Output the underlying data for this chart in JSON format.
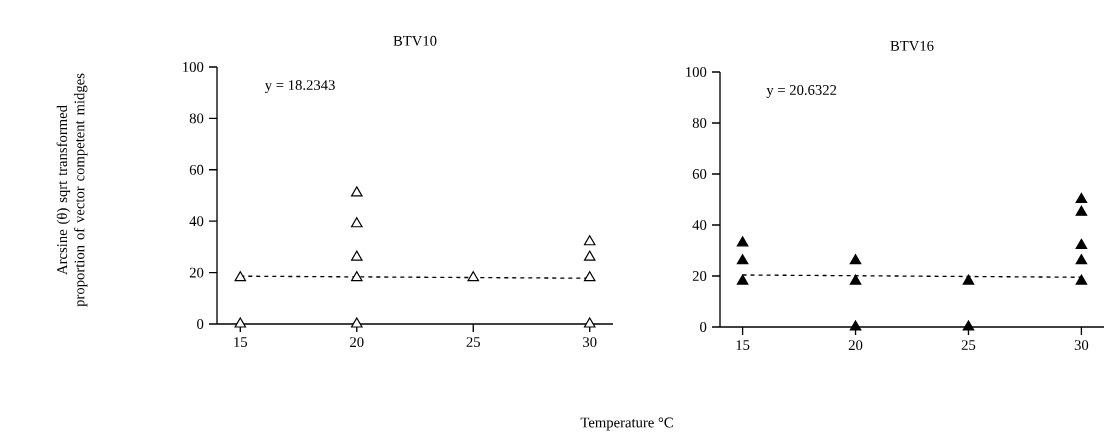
{
  "chart_data": [
    {
      "type": "scatter",
      "title": "BTV10",
      "xlabel": "Temperature °C",
      "ylabel": "Arcsine (θ) sqrt transformed proportion of vector competent midges",
      "annotations": [
        "y = 18.2343"
      ],
      "xlim": [
        14,
        31
      ],
      "xticks": [
        15,
        20,
        25,
        30
      ],
      "ylim": [
        0,
        100
      ],
      "yticks": [
        0,
        20,
        40,
        60,
        80,
        100
      ],
      "marker": "triangle",
      "series": [
        {
          "color": "#ffffff",
          "x": [
            15,
            15,
            20,
            20,
            20,
            20,
            20,
            25,
            30,
            30,
            30,
            30
          ],
          "values": [
            18,
            0,
            51,
            39,
            26,
            18,
            0,
            18,
            32,
            26,
            18,
            0
          ]
        },
        {
          "type": "line",
          "line_style": "dashed",
          "marker": "none",
          "color": "#000000",
          "x": [
            15,
            30
          ],
          "values": [
            18.6,
            17.8
          ]
        }
      ]
    },
    {
      "type": "scatter",
      "title": "BTV16",
      "annotations": [
        "y = 20.6322"
      ],
      "xlim": [
        14,
        31
      ],
      "xticks": [
        15,
        20,
        25,
        30
      ],
      "ylim": [
        0,
        100
      ],
      "yticks": [
        0,
        20,
        40,
        60,
        80,
        100
      ],
      "marker": "triangle",
      "series": [
        {
          "color": "#000000",
          "x": [
            15,
            15,
            15,
            20,
            20,
            20,
            25,
            25,
            30,
            30,
            30,
            30,
            30
          ],
          "values": [
            33,
            26,
            18,
            26,
            18,
            0,
            18,
            0,
            50,
            45,
            32,
            26,
            18
          ]
        },
        {
          "type": "line",
          "line_style": "dashed",
          "marker": "none",
          "color": "#000000",
          "x": [
            15,
            30
          ],
          "values": [
            20.4,
            19.5
          ]
        }
      ]
    }
  ]
}
